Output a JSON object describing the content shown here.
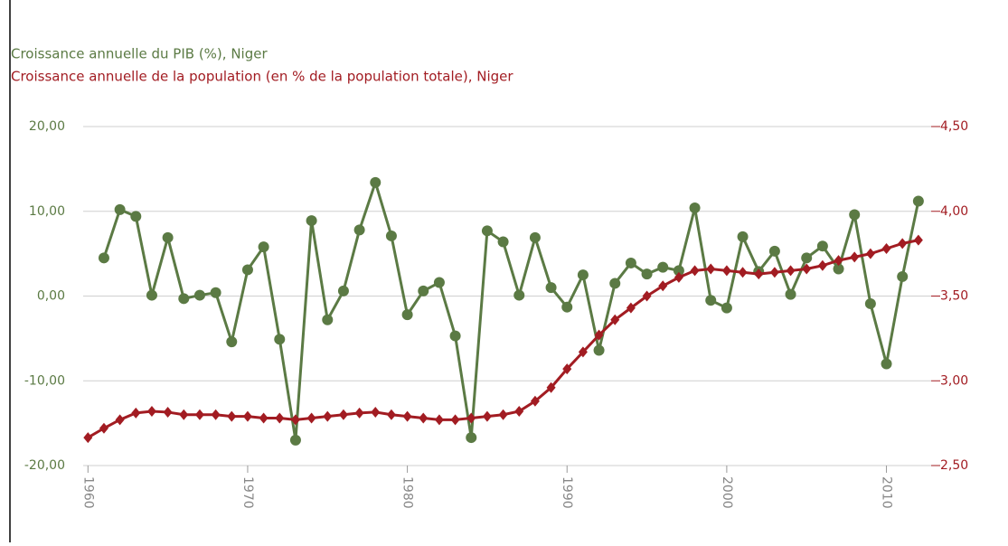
{
  "chart_data": {
    "type": "line",
    "title": "Croissance annuelle du PIB (%), Niger",
    "subtitle": "Croissance annuelle de la population (en % de la population totale), Niger",
    "x": [
      1960,
      1961,
      1962,
      1963,
      1964,
      1965,
      1966,
      1967,
      1968,
      1969,
      1970,
      1971,
      1972,
      1973,
      1974,
      1975,
      1976,
      1977,
      1978,
      1979,
      1980,
      1981,
      1982,
      1983,
      1984,
      1985,
      1986,
      1987,
      1988,
      1989,
      1990,
      1991,
      1992,
      1993,
      1994,
      1995,
      1996,
      1997,
      1998,
      1999,
      2000,
      2001,
      2002,
      2003,
      2004,
      2005,
      2006,
      2007,
      2008,
      2009,
      2010,
      2011,
      2012
    ],
    "xlim": [
      1959.7,
      2012.8
    ],
    "xticks": [
      1960,
      1970,
      1980,
      1990,
      2000,
      2010
    ],
    "ylim": [
      -20,
      20
    ],
    "yticks": [
      {
        "value": -20,
        "label": "-20,00"
      },
      {
        "value": -10,
        "label": "-10,00"
      },
      {
        "value": 0,
        "label": "0,00"
      },
      {
        "value": 10,
        "label": "10,00"
      },
      {
        "value": 20,
        "label": "20,00"
      }
    ],
    "y2lim": [
      2.5,
      4.5
    ],
    "y2ticks": [
      {
        "value": 2.5,
        "label": "2,50"
      },
      {
        "value": 3,
        "label": "3,00"
      },
      {
        "value": 3.5,
        "label": "3,50"
      },
      {
        "value": 4,
        "label": "4,00"
      },
      {
        "value": 4.5,
        "label": "4,50"
      }
    ],
    "grid": true,
    "series": [
      {
        "name": "Croissance annuelle du PIB (%), Niger",
        "color": "#5b7a44",
        "marker": "circle",
        "values": [
          null,
          4.5,
          10.2,
          9.4,
          0.1,
          6.9,
          -0.3,
          0.1,
          0.4,
          -5.4,
          3.1,
          5.8,
          -5.1,
          -17.0,
          8.9,
          -2.8,
          0.6,
          7.8,
          13.4,
          7.1,
          -2.2,
          0.6,
          1.6,
          -4.7,
          -16.7,
          7.7,
          6.4,
          0.1,
          6.9,
          1.0,
          -1.3,
          2.5,
          -6.4,
          1.5,
          3.9,
          2.6,
          3.4,
          3.0,
          10.4,
          -0.5,
          -1.4,
          7.0,
          2.9,
          5.3,
          0.2,
          4.5,
          5.9,
          3.2,
          9.6,
          -0.9,
          -8.0,
          2.3,
          11.2
        ]
      },
      {
        "name": "Croissance annuelle de la population (en % de la population totale), Niger",
        "color": "#a21c22",
        "marker": "diamond",
        "axis": "y2",
        "values": [
          2.665,
          2.72,
          2.77,
          2.81,
          2.82,
          2.815,
          2.8,
          2.8,
          2.8,
          2.79,
          2.79,
          2.78,
          2.78,
          2.77,
          2.78,
          2.79,
          2.8,
          2.81,
          2.815,
          2.8,
          2.79,
          2.78,
          2.77,
          2.77,
          2.78,
          2.79,
          2.8,
          2.82,
          2.88,
          2.96,
          3.07,
          3.17,
          3.27,
          3.36,
          3.43,
          3.5,
          3.56,
          3.61,
          3.65,
          3.66,
          3.65,
          3.64,
          3.63,
          3.64,
          3.65,
          3.66,
          3.68,
          3.71,
          3.73,
          3.75,
          3.78,
          3.81,
          3.83
        ]
      }
    ]
  }
}
